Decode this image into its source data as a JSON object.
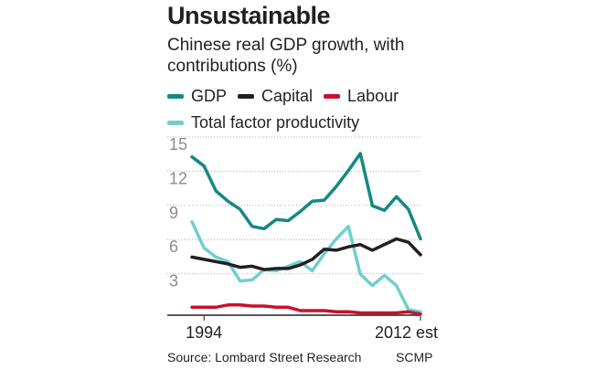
{
  "title": "Unsustainable",
  "subtitle": "Chinese real GDP growth, with contributions (%)",
  "source": "Source: Lombard Street Research",
  "credit": "SCMP",
  "chart_data": {
    "type": "line",
    "title": "Unsustainable",
    "subtitle": "Chinese real GDP growth, with contributions (%)",
    "x": [
      1993,
      1994,
      1995,
      1996,
      1997,
      1998,
      1999,
      2000,
      2001,
      2002,
      2003,
      2004,
      2005,
      2006,
      2007,
      2008,
      2009,
      2010,
      2011,
      2012
    ],
    "x_tick_labels": [
      {
        "x": 1994,
        "label": "1994"
      },
      {
        "x": 2012,
        "label": "2012 est"
      }
    ],
    "ylim": [
      0,
      15
    ],
    "y_ticks": [
      3,
      6,
      9,
      12,
      15
    ],
    "grid": true,
    "legend_position": "top",
    "series": [
      {
        "name": "GDP",
        "color": "#138a80",
        "values": [
          13.9,
          13.1,
          10.9,
          10.0,
          9.3,
          7.8,
          7.6,
          8.4,
          8.3,
          9.1,
          10.0,
          10.1,
          11.3,
          12.7,
          14.2,
          9.6,
          9.2,
          10.4,
          9.3,
          6.7
        ]
      },
      {
        "name": "Capital",
        "color": "#231f20",
        "values": [
          5.1,
          4.9,
          4.7,
          4.5,
          4.2,
          4.3,
          4.0,
          4.1,
          4.1,
          4.4,
          4.9,
          5.8,
          5.7,
          6.0,
          6.2,
          5.7,
          6.2,
          6.7,
          6.4,
          5.3
        ]
      },
      {
        "name": "Labour",
        "color": "#c8102e",
        "values": [
          0.7,
          0.7,
          0.7,
          0.9,
          0.9,
          0.8,
          0.8,
          0.7,
          0.7,
          0.4,
          0.4,
          0.4,
          0.3,
          0.3,
          0.2,
          0.2,
          0.2,
          0.2,
          0.3,
          0.1
        ]
      },
      {
        "name": "Total factor productivity",
        "color": "#6fcfcf",
        "values": [
          8.2,
          5.9,
          5.1,
          4.7,
          3.0,
          3.1,
          4.0,
          3.9,
          4.3,
          4.7,
          3.9,
          5.4,
          6.7,
          7.8,
          3.6,
          2.6,
          3.5,
          2.6,
          0.5,
          0.3
        ]
      }
    ]
  }
}
